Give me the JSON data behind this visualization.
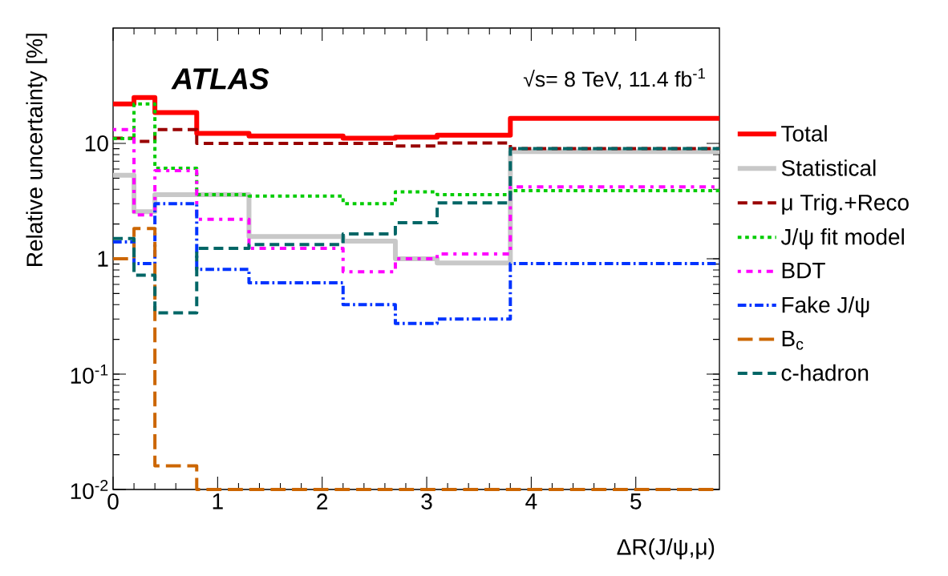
{
  "chart_data": {
    "type": "histogram",
    "xlabel": "ΔR(J/ψ,μ)",
    "ylabel": "Relative uncertainty [%]",
    "bins": [
      0,
      0.2,
      0.4,
      0.8,
      1.3,
      2.2,
      2.7,
      3.1,
      3.8,
      5.8
    ],
    "series": [
      {
        "name": "Total",
        "color": "#ff0000",
        "line_style": "solid",
        "values": [
          22,
          25,
          18.5,
          12.2,
          11.6,
          11.1,
          11.3,
          11.8,
          16.5
        ]
      },
      {
        "name": "Statistical",
        "color": "#c8c8c8",
        "line_style": "solid",
        "values": [
          5.3,
          2.56,
          3.6,
          3.6,
          1.56,
          1.42,
          1.0,
          0.92,
          8.5
        ]
      },
      {
        "name": "μ Trig.+Reco",
        "color": "#990000",
        "line_style": "dashed",
        "values": [
          11.1,
          10.4,
          13.2,
          10.0,
          10.0,
          10.0,
          9.5,
          10.1,
          9.0
        ]
      },
      {
        "name": "J/ψ fit model",
        "color": "#00cc00",
        "line_style": "dotted",
        "values": [
          11,
          22,
          6.1,
          3.6,
          3.5,
          3.0,
          3.8,
          3.6,
          3.9
        ]
      },
      {
        "name": "BDT",
        "color": "#ff00ff",
        "line_style": "dashdotted",
        "values": [
          13.2,
          2.4,
          5.8,
          2.2,
          1.23,
          0.77,
          1.0,
          1.1,
          4.2
        ]
      },
      {
        "name": "Fake J/ψ",
        "color": "#0033ff",
        "line_style": "dashdot",
        "values": [
          1.4,
          0.91,
          3.0,
          0.81,
          0.62,
          0.4,
          0.275,
          0.3,
          0.91
        ]
      },
      {
        "name": "B$_{c}$",
        "color": "#cc6600",
        "line_style": "longdashed",
        "values": [
          1.0,
          1.83,
          0.016,
          0.01,
          0.01,
          0.01,
          0.01,
          0.01,
          0.01
        ]
      },
      {
        "name": "c-hadron",
        "color": "#006666",
        "line_style": "dashed",
        "values": [
          1.5,
          0.72,
          0.34,
          1.23,
          1.33,
          1.64,
          2.05,
          3.05,
          9.0
        ]
      }
    ],
    "xlim": [
      0,
      5.8
    ],
    "xticks": [
      0,
      1,
      2,
      3,
      4,
      5
    ],
    "ylim": [
      0.01,
      100
    ],
    "log": "y",
    "yticks": [
      {
        "value": 0.01,
        "label": "10$^{-2}$"
      },
      {
        "value": 0.1,
        "label": "10$^{-1}$"
      },
      1,
      10
    ],
    "legend": "right",
    "annotations": [
      "ATLAS",
      "√s= 8 TeV, 11.4 fb$^{-1}$"
    ]
  }
}
